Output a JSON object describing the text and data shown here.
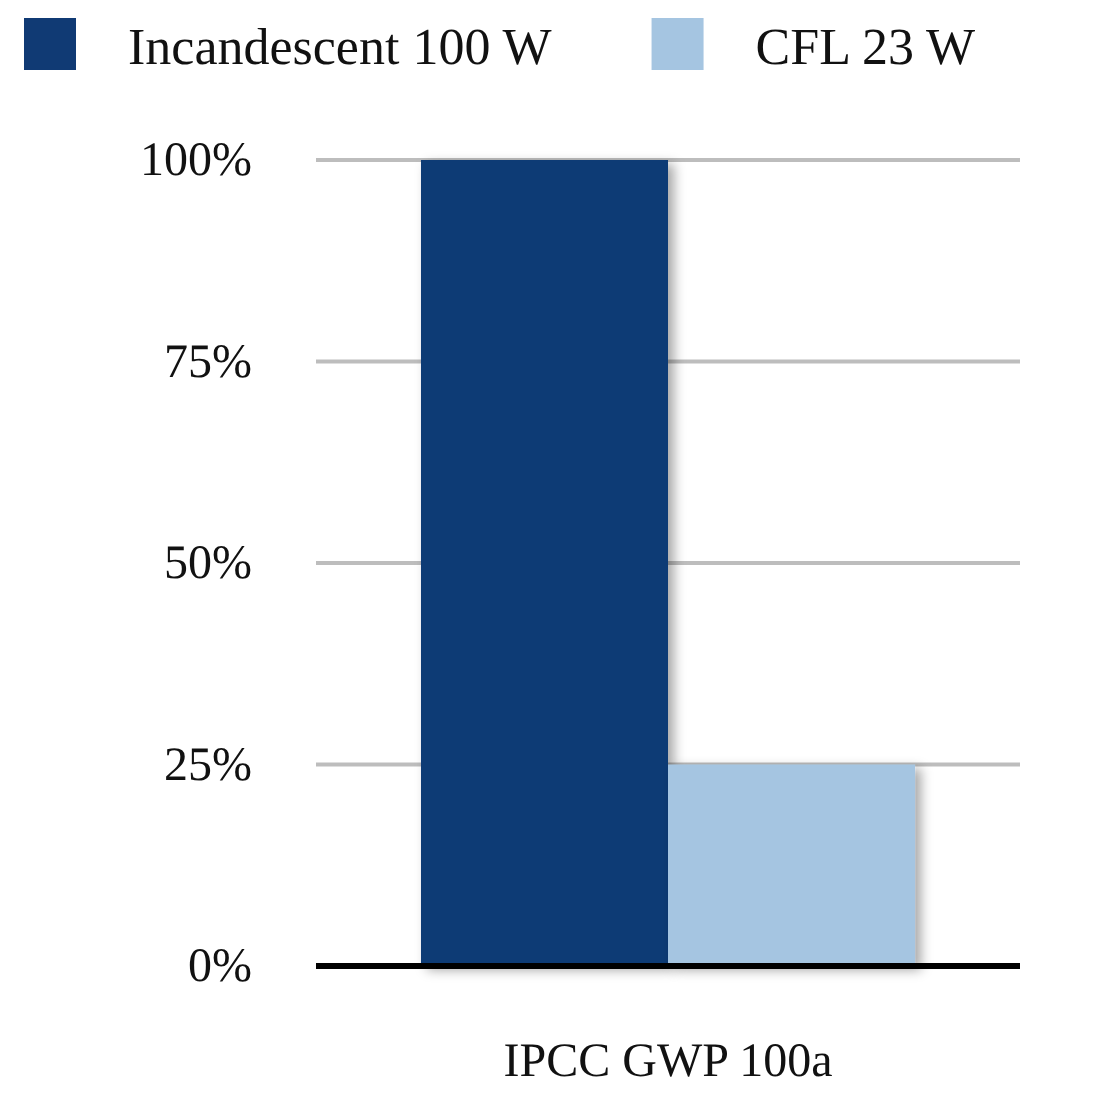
{
  "chart_data": {
    "type": "bar",
    "categories": [
      "IPCC GWP 100a"
    ],
    "series": [
      {
        "name": "Incandescent 100 W",
        "color": "#103a74",
        "values": [
          100
        ]
      },
      {
        "name": "CFL 23 W",
        "color": "#a5c5e1",
        "values": [
          25
        ]
      }
    ],
    "ylim": [
      0,
      100
    ],
    "yticks": [
      {
        "value": 0,
        "label": "0%"
      },
      {
        "value": 25,
        "label": "25%"
      },
      {
        "value": 50,
        "label": "50%"
      },
      {
        "value": 75,
        "label": "75%"
      },
      {
        "value": 100,
        "label": "100%"
      }
    ],
    "grid": "y",
    "legend": "top"
  }
}
